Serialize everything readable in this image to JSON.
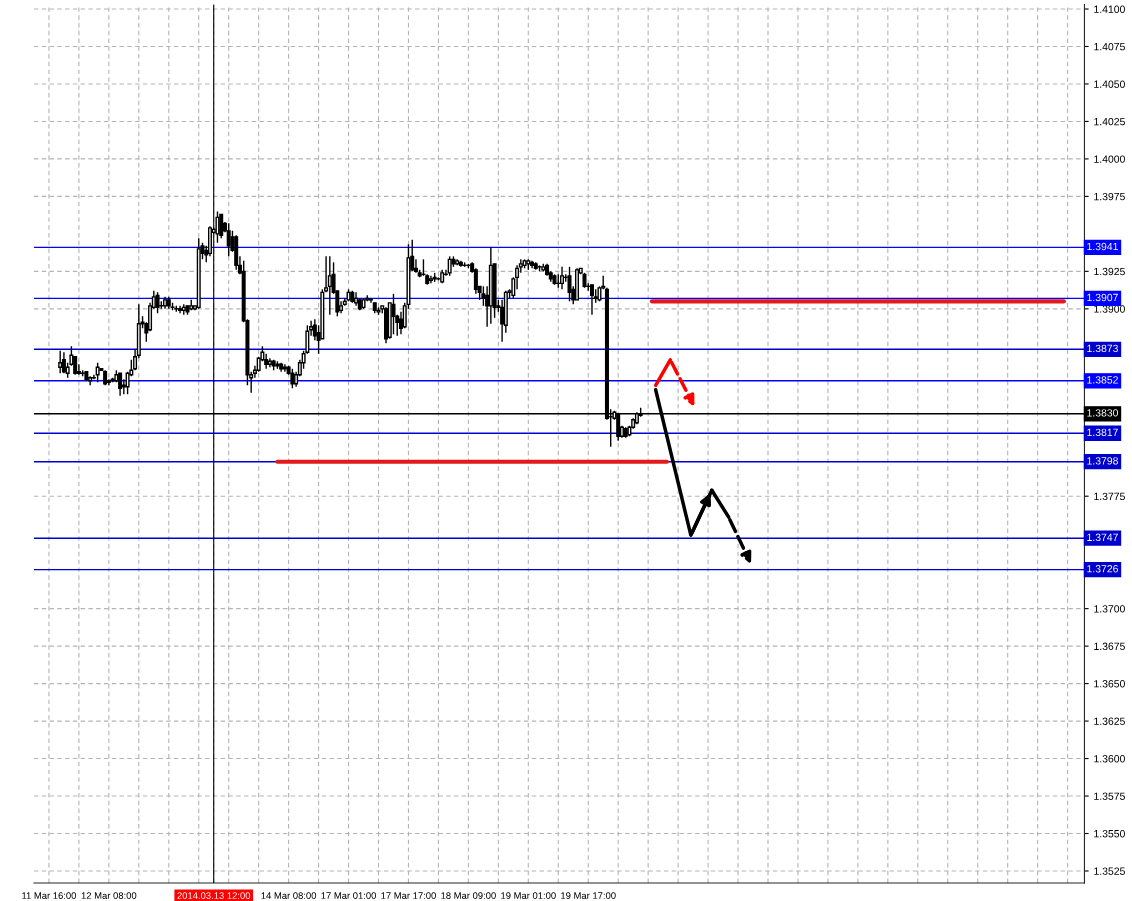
{
  "chart_data": {
    "type": "candlestick",
    "categories": [
      "11 Mar 16:00",
      null,
      null,
      null,
      null,
      null,
      null,
      null,
      null,
      null,
      null,
      null,
      null,
      null,
      null,
      null,
      "12 Mar 08:00",
      null,
      null,
      null,
      null,
      null,
      null,
      null,
      null,
      null,
      null,
      null,
      null,
      null,
      null,
      null,
      null,
      null,
      null,
      null,
      null,
      null,
      null,
      null,
      null,
      null,
      null,
      null,
      "2014.03.13 12:00",
      null,
      null,
      null,
      null,
      null,
      null,
      null,
      null,
      null,
      null,
      null,
      null,
      null,
      null,
      null,
      null,
      null,
      null,
      null,
      "14 Mar 08:00",
      null,
      null,
      null,
      null,
      null,
      null,
      null,
      null,
      null,
      null,
      null,
      null,
      null,
      null,
      null,
      "17 Mar 01:00",
      null,
      null,
      null,
      null,
      null,
      null,
      null,
      null,
      null,
      null,
      null,
      null,
      null,
      null,
      null,
      "17 Mar 17:00",
      null,
      null,
      null,
      null,
      null,
      null,
      null,
      null,
      null,
      null,
      null,
      null,
      null,
      null,
      null,
      "18 Mar 09:00",
      null,
      null,
      null,
      null,
      null,
      null,
      null,
      null,
      null,
      null,
      null,
      null,
      null,
      null,
      null,
      "19 Mar 01:00",
      null,
      null,
      null,
      null,
      null,
      null,
      null,
      null,
      null,
      null,
      null,
      null,
      null,
      null,
      null,
      "19 Mar 17:00",
      null,
      null,
      null,
      null,
      null,
      null,
      null,
      null,
      null,
      null,
      null,
      null,
      null,
      null,
      null,
      null,
      null,
      null,
      null,
      null,
      null,
      null,
      null,
      null,
      null,
      null,
      null,
      null,
      null,
      null,
      null,
      null,
      null,
      null,
      null,
      null,
      null,
      null,
      null,
      null,
      null,
      null,
      null,
      null,
      null,
      null,
      null,
      null,
      null,
      null,
      null,
      null,
      null,
      null,
      null,
      null,
      null,
      null,
      null,
      null,
      null,
      null,
      null,
      null,
      null,
      null,
      null,
      null,
      null,
      null,
      null,
      null,
      null,
      null,
      null,
      null,
      null,
      null,
      null,
      null,
      null,
      null,
      null,
      null,
      null,
      null,
      null,
      null,
      null,
      null,
      null,
      null,
      null,
      null,
      null,
      null,
      null,
      null,
      null,
      null,
      null,
      null,
      null,
      null,
      null,
      null,
      null,
      null,
      null,
      null,
      null,
      null,
      null,
      null,
      null,
      null,
      null,
      null,
      null,
      null,
      null,
      null,
      null,
      null,
      null,
      null,
      null,
      null,
      null,
      null,
      null,
      null
    ],
    "ohlc": [
      null,
      null,
      null,
      [
        1.3861,
        1.3872,
        1.3857,
        1.3864
      ],
      [
        1.3866,
        1.3871,
        1.3857,
        1.3858
      ],
      [
        1.3857,
        1.3864,
        1.3854,
        1.3861
      ],
      [
        1.3863,
        1.3875,
        1.3862,
        1.3869
      ],
      [
        1.3868,
        1.3868,
        1.3856,
        1.3857
      ],
      [
        1.3857,
        1.3863,
        1.3856,
        1.3858
      ],
      [
        1.3857,
        1.3859,
        1.3855,
        1.3857
      ],
      [
        1.3858,
        1.3858,
        1.3852,
        1.3853
      ],
      [
        1.3852,
        1.3855,
        1.3849,
        1.3854
      ],
      [
        1.3854,
        1.3856,
        1.3853,
        1.3854
      ],
      [
        1.3856,
        1.3864,
        1.3851,
        1.3861
      ],
      [
        1.386,
        1.386,
        1.3859,
        1.3859
      ],
      [
        1.3858,
        1.3859,
        1.3849,
        1.385
      ],
      [
        1.3852,
        1.3853,
        1.3849,
        1.3851
      ],
      [
        1.3852,
        1.3854,
        1.3851,
        1.3853
      ],
      [
        1.3852,
        1.3859,
        1.3851,
        1.3856
      ],
      [
        1.3857,
        1.3857,
        1.3842,
        1.3847
      ],
      [
        1.3849,
        1.3853,
        1.3843,
        1.3848
      ],
      [
        1.3848,
        1.3858,
        1.3843,
        1.3857
      ],
      [
        1.3856,
        1.3866,
        1.3855,
        1.3859
      ],
      [
        1.386,
        1.3873,
        1.3859,
        1.3868
      ],
      [
        1.3869,
        1.3903,
        1.3867,
        1.389
      ],
      [
        1.389,
        1.3895,
        1.3887,
        1.3891
      ],
      [
        1.389,
        1.3891,
        1.3878,
        1.3884
      ],
      [
        1.3886,
        1.3904,
        1.3885,
        1.3902
      ],
      [
        1.3901,
        1.3912,
        1.39,
        1.3908
      ],
      [
        1.3909,
        1.3911,
        1.3897,
        1.3901
      ],
      [
        1.3902,
        1.3905,
        1.39,
        1.3902
      ],
      [
        1.3902,
        1.3908,
        1.39,
        1.3906
      ],
      [
        1.3906,
        1.3908,
        1.39,
        1.3902
      ],
      [
        1.3901,
        1.3904,
        1.3899,
        1.3901
      ],
      [
        1.39,
        1.3902,
        1.3898,
        1.39
      ],
      [
        1.39,
        1.3902,
        1.3897,
        1.3899
      ],
      [
        1.3899,
        1.3903,
        1.3896,
        1.3901
      ],
      [
        1.3902,
        1.3902,
        1.3896,
        1.3898
      ],
      [
        1.39,
        1.3906,
        1.3899,
        1.3902
      ],
      [
        1.39,
        1.3902,
        1.3899,
        1.3902
      ],
      [
        1.3901,
        1.3947,
        1.39,
        1.394
      ],
      [
        1.3942,
        1.3944,
        1.3933,
        1.3937
      ],
      [
        1.3939,
        1.3942,
        1.3931,
        1.3936
      ],
      [
        1.3937,
        1.3955,
        1.3935,
        1.3954
      ],
      [
        1.3951,
        1.3954,
        1.395,
        1.3953
      ],
      [
        1.395,
        1.3965,
        1.3944,
        1.3961
      ],
      [
        1.3963,
        1.3963,
        1.3947,
        1.3949
      ],
      [
        1.3957,
        1.3958,
        1.3951,
        1.3952
      ],
      [
        1.3952,
        1.3957,
        1.3935,
        1.3942
      ],
      [
        1.3948,
        1.3952,
        1.3938,
        1.3939
      ],
      [
        1.3948,
        1.3949,
        1.3926,
        1.3929
      ],
      [
        1.3929,
        1.3935,
        1.3923,
        1.3924
      ],
      [
        1.3925,
        1.3932,
        1.3891,
        1.3892
      ],
      [
        1.3892,
        1.3893,
        1.3849,
        1.3856
      ],
      [
        1.3854,
        1.3858,
        1.3844,
        1.3856
      ],
      [
        1.3857,
        1.3862,
        1.3854,
        1.3859
      ],
      [
        1.3859,
        1.3868,
        1.3858,
        1.3867
      ],
      [
        1.3866,
        1.3875,
        1.3865,
        1.3871
      ],
      [
        1.3866,
        1.387,
        1.386,
        1.3863
      ],
      [
        1.3863,
        1.3867,
        1.3861,
        1.3865
      ],
      [
        1.3865,
        1.3866,
        1.3859,
        1.3862
      ],
      [
        1.3862,
        1.3865,
        1.386,
        1.3863
      ],
      [
        1.3863,
        1.3864,
        1.3858,
        1.386
      ],
      [
        1.386,
        1.3863,
        1.3858,
        1.3861
      ],
      [
        1.3861,
        1.3862,
        1.3856,
        1.3857
      ],
      [
        1.3857,
        1.386,
        1.3847,
        1.385
      ],
      [
        1.385,
        1.3858,
        1.3848,
        1.3856
      ],
      [
        1.3856,
        1.3866,
        1.3855,
        1.3864
      ],
      [
        1.3864,
        1.3872,
        1.386,
        1.387
      ],
      [
        1.3871,
        1.3889,
        1.387,
        1.3885
      ],
      [
        1.3886,
        1.3892,
        1.3882,
        1.3888
      ],
      [
        1.3889,
        1.3893,
        1.3879,
        1.3882
      ],
      [
        1.3884,
        1.3889,
        1.387,
        1.3879
      ],
      [
        1.388,
        1.3913,
        1.388,
        1.3911
      ],
      [
        1.3912,
        1.3935,
        1.3911,
        1.3914
      ],
      [
        1.3915,
        1.3935,
        1.3896,
        1.3922
      ],
      [
        1.3923,
        1.3931,
        1.391,
        1.3911
      ],
      [
        1.3912,
        1.3912,
        1.3895,
        1.3898
      ],
      [
        1.3899,
        1.3905,
        1.3897,
        1.3902
      ],
      [
        1.3903,
        1.3907,
        1.3902,
        1.3905
      ],
      [
        1.3906,
        1.3913,
        1.3905,
        1.3911
      ],
      [
        1.3911,
        1.3912,
        1.3904,
        1.3905
      ],
      [
        1.3904,
        1.3911,
        1.3902,
        1.3907
      ],
      [
        1.3906,
        1.3907,
        1.3899,
        1.39
      ],
      [
        1.3901,
        1.3907,
        1.39,
        1.3906
      ],
      [
        1.3906,
        1.3909,
        1.3905,
        1.3907
      ],
      [
        1.3906,
        1.3907,
        1.3904,
        1.3906
      ],
      [
        1.3904,
        1.3904,
        1.3897,
        1.3899
      ],
      [
        1.3898,
        1.3901,
        1.3896,
        1.3899
      ],
      [
        1.39,
        1.3902,
        1.3897,
        1.3902
      ],
      [
        1.39,
        1.3901,
        1.3877,
        1.388
      ],
      [
        1.3881,
        1.3904,
        1.388,
        1.3904
      ],
      [
        1.3903,
        1.391,
        1.3883,
        1.3895
      ],
      [
        1.3895,
        1.3896,
        1.3882,
        1.3891
      ],
      [
        1.3893,
        1.3898,
        1.3883,
        1.3887
      ],
      [
        1.3888,
        1.3904,
        1.3887,
        1.3902
      ],
      [
        1.3903,
        1.3943,
        1.39,
        1.3934
      ],
      [
        1.3935,
        1.3946,
        1.3925,
        1.3926
      ],
      [
        1.3927,
        1.3933,
        1.3924,
        1.3925
      ],
      [
        1.3924,
        1.3926,
        1.3921,
        1.3922
      ],
      [
        1.3923,
        1.3933,
        1.3922,
        1.3923
      ],
      [
        1.3922,
        1.3923,
        1.3916,
        1.3917
      ],
      [
        1.3919,
        1.3922,
        1.3917,
        1.392
      ],
      [
        1.3921,
        1.3924,
        1.3918,
        1.392
      ],
      [
        1.392,
        1.3921,
        1.3919,
        1.392
      ],
      [
        1.3918,
        1.3926,
        1.3917,
        1.3924
      ],
      [
        1.3923,
        1.3926,
        1.3922,
        1.3923
      ],
      [
        1.3924,
        1.3935,
        1.3922,
        1.3933
      ],
      [
        1.3933,
        1.3935,
        1.3928,
        1.393
      ],
      [
        1.393,
        1.3933,
        1.3929,
        1.3932
      ],
      [
        1.3931,
        1.3932,
        1.3928,
        1.3929
      ],
      [
        1.3929,
        1.3931,
        1.3928,
        1.3929
      ],
      [
        1.3929,
        1.393,
        1.3927,
        1.3929
      ],
      [
        1.393,
        1.3931,
        1.3924,
        1.3925
      ],
      [
        1.3926,
        1.3927,
        1.391,
        1.3913
      ],
      [
        1.3915,
        1.3915,
        1.3906,
        1.3911
      ],
      [
        1.391,
        1.3915,
        1.3902,
        1.3907
      ],
      [
        1.3909,
        1.3915,
        1.3888,
        1.3902
      ],
      [
        1.3902,
        1.3941,
        1.389,
        1.3929
      ],
      [
        1.393,
        1.393,
        1.3894,
        1.3901
      ],
      [
        1.3902,
        1.3906,
        1.3898,
        1.3901
      ],
      [
        1.3901,
        1.3906,
        1.3878,
        1.389
      ],
      [
        1.3889,
        1.3912,
        1.3884,
        1.3911
      ],
      [
        1.3911,
        1.3913,
        1.3907,
        1.3912
      ],
      [
        1.3909,
        1.3921,
        1.3907,
        1.392
      ],
      [
        1.3921,
        1.3929,
        1.3913,
        1.3927
      ],
      [
        1.3928,
        1.3933,
        1.3924,
        1.393
      ],
      [
        1.3929,
        1.3933,
        1.3927,
        1.3932
      ],
      [
        1.393,
        1.3933,
        1.3926,
        1.3932
      ],
      [
        1.3931,
        1.3932,
        1.3927,
        1.3929
      ],
      [
        1.393,
        1.3931,
        1.3926,
        1.3927
      ],
      [
        1.3928,
        1.3929,
        1.3925,
        1.3928
      ],
      [
        1.3926,
        1.393,
        1.3925,
        1.3928
      ],
      [
        1.3929,
        1.393,
        1.3922,
        1.3923
      ],
      [
        1.3924,
        1.3925,
        1.3918,
        1.392
      ],
      [
        1.3922,
        1.3923,
        1.3916,
        1.3917
      ],
      [
        1.3917,
        1.3923,
        1.3914,
        1.3917
      ],
      [
        1.3917,
        1.3928,
        1.3913,
        1.3922
      ],
      [
        1.3921,
        1.3923,
        1.3918,
        1.3921
      ],
      [
        1.3922,
        1.3928,
        1.3905,
        1.3911
      ],
      [
        1.3913,
        1.3915,
        1.3903,
        1.3906
      ],
      [
        1.3906,
        1.3927,
        1.3906,
        1.3926
      ],
      [
        1.3924,
        1.3927,
        1.3923,
        1.3927
      ],
      [
        1.3923,
        1.3924,
        1.3914,
        1.3915
      ],
      [
        1.3915,
        1.3917,
        1.3912,
        1.3915
      ],
      [
        1.3916,
        1.3916,
        1.3896,
        1.3909
      ],
      [
        1.3908,
        1.3913,
        1.3904,
        1.3907
      ],
      [
        1.3906,
        1.3915,
        1.3905,
        1.3914
      ],
      [
        1.3914,
        1.3922,
        1.3913,
        1.3915
      ],
      [
        1.3913,
        1.3914,
        1.3826,
        1.3827
      ],
      [
        1.3828,
        1.3833,
        1.3808,
        1.3828
      ],
      [
        1.3827,
        1.3832,
        1.3826,
        1.3831
      ],
      [
        1.383,
        1.383,
        1.3812,
        1.3815
      ],
      [
        1.3815,
        1.3822,
        1.3814,
        1.3821
      ],
      [
        1.382,
        1.3821,
        1.3814,
        1.3815
      ],
      [
        1.3816,
        1.3822,
        1.3815,
        1.3821
      ],
      [
        1.3821,
        1.3827,
        1.382,
        1.3826
      ],
      [
        1.3824,
        1.3831,
        1.3823,
        1.383
      ],
      [
        1.3829,
        1.3834,
        1.3828,
        1.383
      ],
      null,
      null,
      null,
      null,
      null,
      null,
      null,
      null,
      null,
      null,
      null,
      null,
      null,
      null,
      null,
      null,
      null,
      null,
      null,
      null,
      null,
      null,
      null,
      null,
      null,
      null,
      null,
      null,
      null,
      null,
      null,
      null,
      null,
      null,
      null,
      null,
      null,
      null,
      null,
      null,
      null,
      null,
      null,
      null,
      null,
      null,
      null,
      null,
      null,
      null,
      null,
      null,
      null,
      null,
      null,
      null,
      null,
      null,
      null,
      null,
      null,
      null,
      null,
      null,
      null,
      null,
      null,
      null,
      null,
      null,
      null,
      null,
      null,
      null,
      null,
      null,
      null,
      null,
      null,
      null,
      null,
      null,
      null,
      null,
      null,
      null,
      null,
      null,
      null,
      null,
      null,
      null,
      null,
      null,
      null,
      null,
      null,
      null,
      null,
      null,
      null,
      null,
      null,
      null,
      null,
      null,
      null,
      null,
      null,
      null,
      null,
      null,
      null,
      null,
      null,
      null,
      null,
      null
    ],
    "series": [
      {
        "type": "line",
        "color": "#e31a1c",
        "line_style": "solid",
        "values": [
          null,
          null,
          null,
          null,
          null,
          null,
          null,
          null,
          null,
          null,
          null,
          null,
          null,
          null,
          null,
          null,
          null,
          null,
          null,
          null,
          null,
          null,
          null,
          null,
          null,
          null,
          null,
          null,
          null,
          null,
          null,
          null,
          null,
          null,
          null,
          null,
          null,
          null,
          null,
          null,
          null,
          null,
          null,
          null,
          null,
          null,
          null,
          null,
          null,
          null,
          null,
          null,
          null,
          null,
          null,
          null,
          null,
          null,
          null,
          null,
          null,
          1.3798,
          1.3798,
          1.3798,
          1.3798,
          1.3798,
          1.3798,
          1.3798,
          1.3798,
          1.3798,
          1.3798,
          1.3798,
          1.3798,
          1.3798,
          1.3798,
          1.3798,
          1.3798,
          1.3798,
          1.3798,
          1.3798,
          1.3798,
          1.3798,
          1.3798,
          1.3798,
          1.3798,
          1.3798,
          1.3798,
          1.3798,
          1.3798,
          1.3798,
          1.3798,
          1.3798,
          1.3798,
          1.3798,
          1.3798,
          1.3798,
          1.3798,
          1.3798,
          1.3798,
          1.3798,
          1.3798,
          1.3798,
          1.3798,
          1.3798,
          1.3798,
          1.3798,
          1.3798,
          1.3798,
          1.3798,
          1.3798,
          1.3798,
          1.3798,
          1.3798,
          1.3798,
          1.3798,
          1.3798,
          1.3798,
          1.3798,
          1.3798,
          1.3798,
          1.3798,
          1.3798,
          1.3798,
          1.3798,
          1.3798,
          1.3798,
          1.3798,
          1.3798,
          1.3798,
          1.3798,
          1.3798,
          1.3798,
          1.3798,
          1.3798,
          1.3798,
          1.3798,
          1.3798,
          1.3798,
          1.3798,
          1.3798,
          1.3798,
          1.3798,
          1.3798,
          1.3798,
          1.3798,
          1.3798,
          1.3798,
          1.3798,
          1.3798,
          1.3798,
          1.3798,
          1.3798,
          1.3798,
          1.3798,
          1.3798,
          1.3798,
          1.3798,
          1.3798,
          1.3798,
          1.3798,
          1.3798,
          1.3798,
          1.3798,
          1.3798,
          1.3798,
          1.3798,
          null,
          null,
          null,
          null,
          null,
          null,
          null,
          null,
          null,
          null,
          null,
          null,
          null,
          null,
          null,
          null,
          null,
          null,
          null,
          null,
          null,
          null,
          null,
          null,
          null,
          null,
          null,
          null,
          null,
          null,
          null,
          null,
          null,
          null,
          null,
          null,
          null,
          null,
          null,
          null,
          null,
          null,
          null,
          null,
          null,
          null,
          null,
          null,
          null,
          null,
          null,
          null,
          null,
          null,
          null,
          null,
          null,
          null,
          null,
          null,
          null,
          null,
          null,
          null,
          null,
          null,
          null,
          null,
          null,
          null,
          null,
          null,
          null,
          null,
          null,
          null,
          null,
          null,
          null,
          null,
          null,
          null,
          null,
          null,
          null,
          null,
          null,
          null,
          null,
          null,
          null,
          null,
          null,
          null,
          null,
          null,
          null,
          null,
          null,
          null,
          null,
          null,
          null,
          null,
          null,
          null,
          null,
          null,
          null,
          null,
          null
        ]
      },
      {
        "type": "line",
        "color": "#e31a1c",
        "line_style": "solid",
        "values": [
          null,
          null,
          null,
          null,
          null,
          null,
          null,
          null,
          null,
          null,
          null,
          null,
          null,
          null,
          null,
          null,
          null,
          null,
          null,
          null,
          null,
          null,
          null,
          null,
          null,
          null,
          null,
          null,
          null,
          null,
          null,
          null,
          null,
          null,
          null,
          null,
          null,
          null,
          null,
          null,
          null,
          null,
          null,
          null,
          null,
          null,
          null,
          null,
          null,
          null,
          null,
          null,
          null,
          null,
          null,
          null,
          null,
          null,
          null,
          null,
          null,
          null,
          null,
          null,
          null,
          null,
          null,
          null,
          null,
          null,
          null,
          null,
          null,
          null,
          null,
          null,
          null,
          null,
          null,
          null,
          null,
          null,
          null,
          null,
          null,
          null,
          null,
          null,
          null,
          null,
          null,
          null,
          null,
          null,
          null,
          null,
          null,
          null,
          null,
          null,
          null,
          null,
          null,
          null,
          null,
          null,
          null,
          null,
          null,
          null,
          null,
          null,
          null,
          null,
          null,
          null,
          null,
          null,
          null,
          null,
          null,
          null,
          null,
          null,
          null,
          null,
          null,
          null,
          null,
          null,
          null,
          null,
          null,
          null,
          null,
          null,
          null,
          null,
          null,
          null,
          null,
          null,
          null,
          null,
          null,
          null,
          null,
          null,
          null,
          null,
          null,
          null,
          null,
          null,
          null,
          null,
          null,
          null,
          null,
          null,
          null,
          1.3905,
          1.3905,
          1.3905,
          1.3905,
          1.3905,
          1.3905,
          1.3905,
          1.3905,
          1.3905,
          1.3905,
          1.3905,
          1.3905,
          1.3905,
          1.3905,
          1.3905,
          1.3905,
          1.3905,
          1.3905,
          1.3905,
          1.3905,
          1.3905,
          1.3905,
          1.3905,
          1.3905,
          1.3905,
          1.3905,
          1.3905,
          1.3905,
          1.3905,
          1.3905,
          1.3905,
          1.3905,
          1.3905,
          1.3905,
          1.3905,
          1.3905,
          1.3905,
          1.3905,
          1.3905,
          1.3905,
          1.3905,
          1.3905,
          1.3905,
          1.3905,
          1.3905,
          1.3905,
          1.3905,
          1.3905,
          1.3905,
          1.3905,
          1.3905,
          1.3905,
          1.3905,
          1.3905,
          1.3905,
          1.3905,
          1.3905,
          1.3905,
          1.3905,
          1.3905,
          1.3905,
          1.3905,
          1.3905,
          1.3905,
          1.3905,
          1.3905,
          1.3905,
          1.3905,
          1.3905,
          1.3905,
          1.3905,
          1.3905,
          1.3905,
          1.3905,
          1.3905,
          1.3905,
          1.3905,
          1.3905,
          1.3905,
          1.3905,
          1.3905,
          1.3905,
          1.3905,
          1.3905,
          1.3905,
          1.3905,
          1.3905,
          1.3905,
          1.3905,
          1.3905,
          1.3905,
          1.3905,
          1.3905,
          1.3905,
          1.3905,
          1.3905,
          1.3905,
          1.3905,
          1.3905,
          1.3905,
          1.3905,
          1.3905,
          1.3905,
          1.3905,
          1.3905,
          1.3905,
          1.3905,
          1.3905,
          1.3905,
          1.3905,
          1.3905,
          null,
          null,
          null,
          null,
          null
        ]
      }
    ],
    "ref_lines": [
      {
        "axis": "y",
        "value": 1.3941,
        "label": "1.3941",
        "color": "#0000ff"
      },
      {
        "axis": "y",
        "value": 1.3907,
        "label": "1.3907",
        "color": "#0000ff"
      },
      {
        "axis": "y",
        "value": 1.3873,
        "label": "1.3873",
        "color": "#0000cd"
      },
      {
        "axis": "y",
        "value": 1.3852,
        "label": "1.3852",
        "color": "#0000ff"
      },
      {
        "axis": "y",
        "value": 1.383,
        "label": "1.3830",
        "color": "#000000"
      },
      {
        "axis": "y",
        "value": 1.3817,
        "label": "1.3817",
        "color": "#0000cd"
      },
      {
        "axis": "y",
        "value": 1.3798,
        "label": "1.3798",
        "color": "#0000cd"
      },
      {
        "axis": "y",
        "value": 1.3747,
        "label": "1.3747",
        "color": "#0000cd"
      },
      {
        "axis": "y",
        "value": 1.3726,
        "label": "1.3726",
        "color": "#0000cd"
      },
      {
        "axis": "x",
        "value": "2014.03.13 12:00",
        "color": "#000000"
      }
    ],
    "ylim": [
      1.3517,
      1.4103
    ],
    "yticks": [
      1.3525,
      {
        "value": 1.355,
        "label": "1.3550"
      },
      1.3575,
      {
        "value": 1.36,
        "label": "1.3600"
      },
      1.3625,
      {
        "value": 1.365,
        "label": "1.3650"
      },
      1.3675,
      {
        "value": 1.37,
        "label": "1.3700"
      },
      1.3775,
      {
        "value": 1.39,
        "label": "1.3900"
      },
      1.3925,
      1.3975,
      {
        "value": 1.4,
        "label": "1.4000"
      },
      1.4025,
      {
        "value": 1.405,
        "label": "1.4050"
      },
      1.4075,
      {
        "value": 1.41,
        "label": "1.4100"
      }
    ],
    "grid": true
  }
}
